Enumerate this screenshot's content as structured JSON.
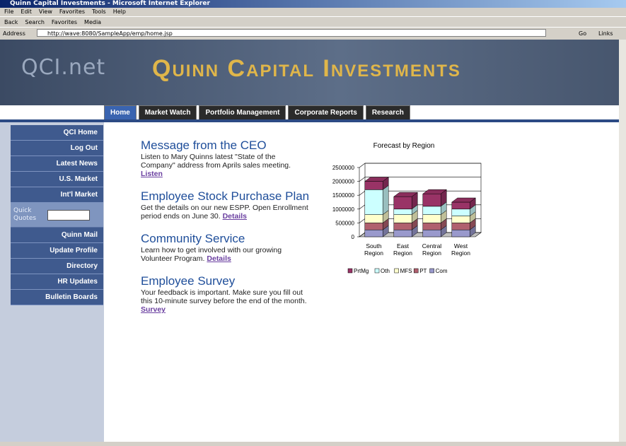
{
  "window": {
    "title": "Quinn Capital Investments - Microsoft Internet Explorer"
  },
  "menu": [
    "File",
    "Edit",
    "View",
    "Favorites",
    "Tools",
    "Help"
  ],
  "toolbar": [
    "Back",
    "Search",
    "Favorites",
    "Media"
  ],
  "address": {
    "label": "Address",
    "url": "http://wave:8080/SampleApp/emp/home.jsp",
    "go": "Go",
    "links": "Links"
  },
  "header": {
    "logo": "QCI.net",
    "title": "Quinn Capital Investments"
  },
  "tabs": [
    "Home",
    "Market Watch",
    "Portfolio Management",
    "Corporate Reports",
    "Research"
  ],
  "nav": {
    "top": [
      "QCI Home",
      "Log Out",
      "Latest News",
      "U.S. Market",
      "Int'l Market"
    ],
    "quick_quotes": "Quick Quotes",
    "bottom": [
      "Quinn Mail",
      "Update Profile",
      "Directory",
      "HR Updates",
      "Bulletin Boards"
    ]
  },
  "articles": [
    {
      "heading": "Message from the CEO",
      "body": "Listen to Mary Quinns latest \"State of the Company\" address from Aprils sales meeting.",
      "link": "Listen"
    },
    {
      "heading": "Employee Stock Purchase Plan",
      "body": "Get the details on our new ESPP. Open Enrollment period ends on June 30.",
      "link": "Details"
    },
    {
      "heading": "Community Service",
      "body": "Learn how to get involved with our growing Volunteer Program.",
      "link": "Details"
    },
    {
      "heading": "Employee Survey",
      "body": "Your feedback is important. Make sure you fill out this 10-minute survey before the end of the month.",
      "link": "Survey"
    }
  ],
  "chart_data": {
    "type": "stacked_bar_3d",
    "title": "Forecast by Region",
    "categories": [
      "South Region",
      "East Region",
      "Central Region",
      "West Region"
    ],
    "series": [
      {
        "name": "PrtMg",
        "color": "#993366",
        "values": [
          300000,
          450000,
          450000,
          250000
        ]
      },
      {
        "name": "Oth",
        "color": "#ccffff",
        "values": [
          900000,
          200000,
          300000,
          250000
        ]
      },
      {
        "name": "MFS",
        "color": "#ffffcc",
        "values": [
          300000,
          300000,
          300000,
          250000
        ]
      },
      {
        "name": "PT",
        "color": "#b0606e",
        "values": [
          250000,
          250000,
          250000,
          250000
        ]
      },
      {
        "name": "Com",
        "color": "#9999cc",
        "values": [
          250000,
          250000,
          250000,
          250000
        ]
      }
    ],
    "ylim": [
      0,
      2500000
    ],
    "yticks": [
      0,
      500000,
      1000000,
      1500000,
      2000000,
      2500000
    ],
    "grid": true
  }
}
